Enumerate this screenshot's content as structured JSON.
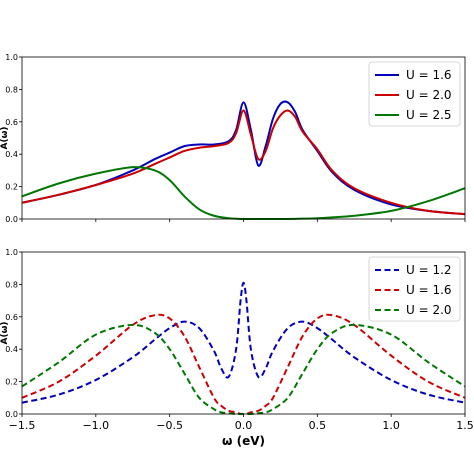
{
  "chart_data": [
    {
      "type": "line",
      "title": "",
      "xlabel": "",
      "ylabel": "A(ω)",
      "xlim": [
        -1.5,
        1.5
      ],
      "ylim": [
        0,
        1.0
      ],
      "yticks": [
        "0.0",
        "0.2",
        "0.4",
        "0.6",
        "0.8",
        "1.0"
      ],
      "grid": false,
      "legend_position": "top-right",
      "line_style": "solid",
      "x": [
        -1.5,
        -1.25,
        -1.0,
        -0.75,
        -0.6,
        -0.5,
        -0.4,
        -0.3,
        -0.2,
        -0.1,
        -0.05,
        0.0,
        0.05,
        0.1,
        0.15,
        0.2,
        0.25,
        0.3,
        0.35,
        0.4,
        0.5,
        0.6,
        0.75,
        1.0,
        1.25,
        1.5
      ],
      "series": [
        {
          "name": "U = 1.6",
          "color": "#0000bb",
          "values": [
            0.1,
            0.15,
            0.21,
            0.3,
            0.37,
            0.41,
            0.45,
            0.46,
            0.46,
            0.48,
            0.55,
            0.72,
            0.55,
            0.33,
            0.45,
            0.62,
            0.71,
            0.72,
            0.66,
            0.55,
            0.42,
            0.29,
            0.18,
            0.09,
            0.05,
            0.03
          ]
        },
        {
          "name": "U = 2.0",
          "color": "#cc0000",
          "values": [
            0.1,
            0.15,
            0.21,
            0.28,
            0.34,
            0.38,
            0.42,
            0.44,
            0.45,
            0.47,
            0.53,
            0.67,
            0.52,
            0.37,
            0.42,
            0.56,
            0.64,
            0.67,
            0.63,
            0.54,
            0.43,
            0.3,
            0.19,
            0.1,
            0.05,
            0.03
          ]
        },
        {
          "name": "U = 2.5",
          "color": "#007700",
          "values": [
            0.14,
            0.22,
            0.28,
            0.32,
            0.3,
            0.24,
            0.14,
            0.06,
            0.02,
            0.005,
            0.002,
            0.0,
            0.0,
            0.0,
            0.0,
            0.0,
            0.0,
            0.0,
            0.001,
            0.002,
            0.005,
            0.01,
            0.02,
            0.05,
            0.11,
            0.19
          ]
        }
      ]
    },
    {
      "type": "line",
      "title": "",
      "xlabel": "ω (eV)",
      "ylabel": "A(ω)",
      "xlim": [
        -1.5,
        1.5
      ],
      "ylim": [
        0,
        1.0
      ],
      "xticks": [
        "−1.5",
        "−1.0",
        "−0.5",
        "0.0",
        "0.5",
        "1.0",
        "1.5"
      ],
      "yticks": [
        "0.0",
        "0.2",
        "0.4",
        "0.6",
        "0.8",
        "1.0"
      ],
      "grid": false,
      "legend_position": "top-right",
      "line_style": "dashed",
      "x": [
        -1.5,
        -1.25,
        -1.0,
        -0.75,
        -0.6,
        -0.5,
        -0.4,
        -0.3,
        -0.2,
        -0.15,
        -0.1,
        -0.05,
        -0.02,
        0.0,
        0.02,
        0.05,
        0.1,
        0.15,
        0.2,
        0.3,
        0.4,
        0.5,
        0.6,
        0.75,
        1.0,
        1.25,
        1.5
      ],
      "series": [
        {
          "name": "U = 1.2",
          "color": "#0000bb",
          "values": [
            0.07,
            0.12,
            0.21,
            0.35,
            0.46,
            0.53,
            0.57,
            0.53,
            0.39,
            0.28,
            0.23,
            0.4,
            0.7,
            0.81,
            0.7,
            0.4,
            0.23,
            0.28,
            0.39,
            0.53,
            0.57,
            0.53,
            0.46,
            0.35,
            0.21,
            0.12,
            0.07
          ]
        },
        {
          "name": "U = 1.6",
          "color": "#cc0000",
          "values": [
            0.1,
            0.2,
            0.36,
            0.55,
            0.61,
            0.59,
            0.48,
            0.29,
            0.1,
            0.05,
            0.02,
            0.01,
            0.0,
            0.0,
            0.0,
            0.01,
            0.02,
            0.05,
            0.1,
            0.29,
            0.48,
            0.59,
            0.61,
            0.55,
            0.36,
            0.2,
            0.1
          ]
        },
        {
          "name": "U = 2.0",
          "color": "#007700",
          "values": [
            0.17,
            0.32,
            0.49,
            0.55,
            0.5,
            0.4,
            0.25,
            0.1,
            0.03,
            0.01,
            0.005,
            0.0,
            0.0,
            0.0,
            0.0,
            0.0,
            0.005,
            0.01,
            0.03,
            0.1,
            0.25,
            0.4,
            0.5,
            0.55,
            0.49,
            0.32,
            0.17
          ]
        }
      ]
    }
  ]
}
